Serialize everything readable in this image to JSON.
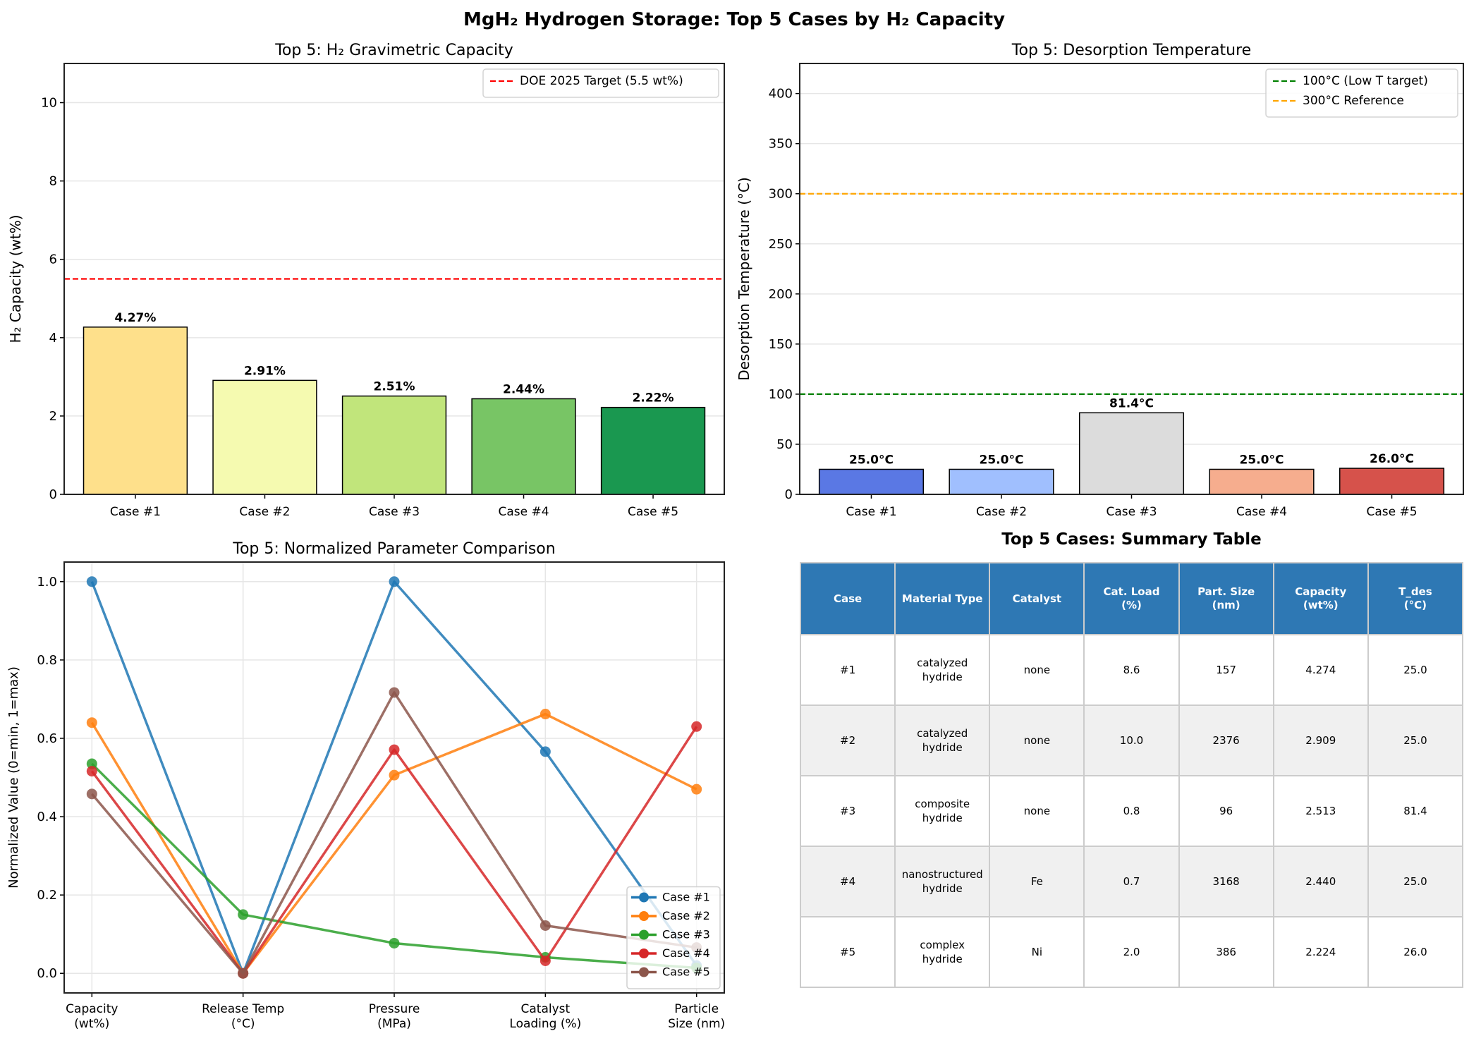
{
  "figure": {
    "suptitle": "MgH₂ Hydrogen Storage: Top 5 Cases by H₂ Capacity"
  },
  "chart_data": [
    {
      "id": "capacity",
      "type": "bar",
      "title": "Top 5: H₂ Gravimetric Capacity",
      "xlabel": "",
      "ylabel": "H₂ Capacity (wt%)",
      "categories": [
        "Case #1",
        "Case #2",
        "Case #3",
        "Case #4",
        "Case #5"
      ],
      "values": [
        4.27,
        2.91,
        2.51,
        2.44,
        2.22
      ],
      "value_labels": [
        "4.27%",
        "2.91%",
        "2.51%",
        "2.44%",
        "2.22%"
      ],
      "bar_colors": [
        "#fee08b",
        "#f5fab0",
        "#c1e57b",
        "#78c565",
        "#1a9850"
      ],
      "ylim": [
        0,
        11
      ],
      "yticks": [
        0,
        2,
        4,
        6,
        8,
        10
      ],
      "grid": "y",
      "reference_lines": [
        {
          "value": 5.5,
          "color": "#ff0000",
          "style": "dashed",
          "label": "DOE 2025 Target (5.5 wt%)"
        }
      ],
      "legend_position": "top-right"
    },
    {
      "id": "desorption",
      "type": "bar",
      "title": "Top 5: Desorption Temperature",
      "xlabel": "",
      "ylabel": "Desorption Temperature (°C)",
      "categories": [
        "Case #1",
        "Case #2",
        "Case #3",
        "Case #4",
        "Case #5"
      ],
      "values": [
        25.0,
        25.0,
        81.4,
        25.0,
        26.0
      ],
      "value_labels": [
        "25.0°C",
        "25.0°C",
        "81.4°C",
        "25.0°C",
        "26.0°C"
      ],
      "bar_colors": [
        "#5a78e4",
        "#a0bffe",
        "#dcdcdc",
        "#f6ad8e",
        "#d6524b"
      ],
      "ylim": [
        0,
        430
      ],
      "yticks": [
        0,
        50,
        100,
        150,
        200,
        250,
        300,
        350,
        400
      ],
      "grid": "y",
      "reference_lines": [
        {
          "value": 100,
          "color": "#008000",
          "style": "dashed",
          "label": "100°C (Low T target)"
        },
        {
          "value": 300,
          "color": "#ffa500",
          "style": "dashed",
          "label": "300°C Reference"
        }
      ],
      "legend_position": "top-right"
    },
    {
      "id": "normalized",
      "type": "line",
      "title": "Top 5: Normalized Parameter Comparison",
      "xlabel": "",
      "ylabel": "Normalized Value (0=min, 1=max)",
      "categories": [
        "Capacity\n(wt%)",
        "Release Temp\n(°C)",
        "Pressure\n(MPa)",
        "Catalyst\nLoading (%)",
        "Particle\nSize (nm)"
      ],
      "ylim": [
        -0.05,
        1.05
      ],
      "yticks": [
        0.0,
        0.2,
        0.4,
        0.6,
        0.8,
        1.0
      ],
      "ytick_labels": [
        "0.0",
        "0.2",
        "0.4",
        "0.6",
        "0.8",
        "1.0"
      ],
      "grid": "both",
      "legend_position": "lower-right",
      "series": [
        {
          "name": "Case #1",
          "color": "#1f77b4",
          "values": [
            1.0,
            0.0,
            1.0,
            0.566,
            0.02
          ]
        },
        {
          "name": "Case #2",
          "color": "#ff7f0e",
          "values": [
            0.64,
            0.0,
            0.506,
            0.662,
            0.47
          ]
        },
        {
          "name": "Case #3",
          "color": "#2ca02c",
          "values": [
            0.535,
            0.15,
            0.077,
            0.041,
            0.014
          ]
        },
        {
          "name": "Case #4",
          "color": "#d62728",
          "values": [
            0.516,
            0.0,
            0.571,
            0.032,
            0.63
          ]
        },
        {
          "name": "Case #5",
          "color": "#8c564b",
          "values": [
            0.458,
            0.0,
            0.717,
            0.122,
            0.066
          ]
        }
      ]
    },
    {
      "id": "summary_table",
      "type": "table",
      "title": "Top 5 Cases: Summary Table",
      "header_color": "#2e78b4",
      "columns": [
        "Case",
        "Material Type",
        "Catalyst",
        "Cat. Load\n(%)",
        "Part. Size\n(nm)",
        "Capacity\n(wt%)",
        "T_des\n(°C)"
      ],
      "rows": [
        [
          "#1",
          "catalyzed\nhydride",
          "none",
          "8.6",
          "157",
          "4.274",
          "25.0"
        ],
        [
          "#2",
          "catalyzed\nhydride",
          "none",
          "10.0",
          "2376",
          "2.909",
          "25.0"
        ],
        [
          "#3",
          "composite\nhydride",
          "none",
          "0.8",
          "96",
          "2.513",
          "81.4"
        ],
        [
          "#4",
          "nanostructured\nhydride",
          "Fe",
          "0.7",
          "3168",
          "2.440",
          "25.0"
        ],
        [
          "#5",
          "complex\nhydride",
          "Ni",
          "2.0",
          "386",
          "2.224",
          "26.0"
        ]
      ]
    }
  ]
}
